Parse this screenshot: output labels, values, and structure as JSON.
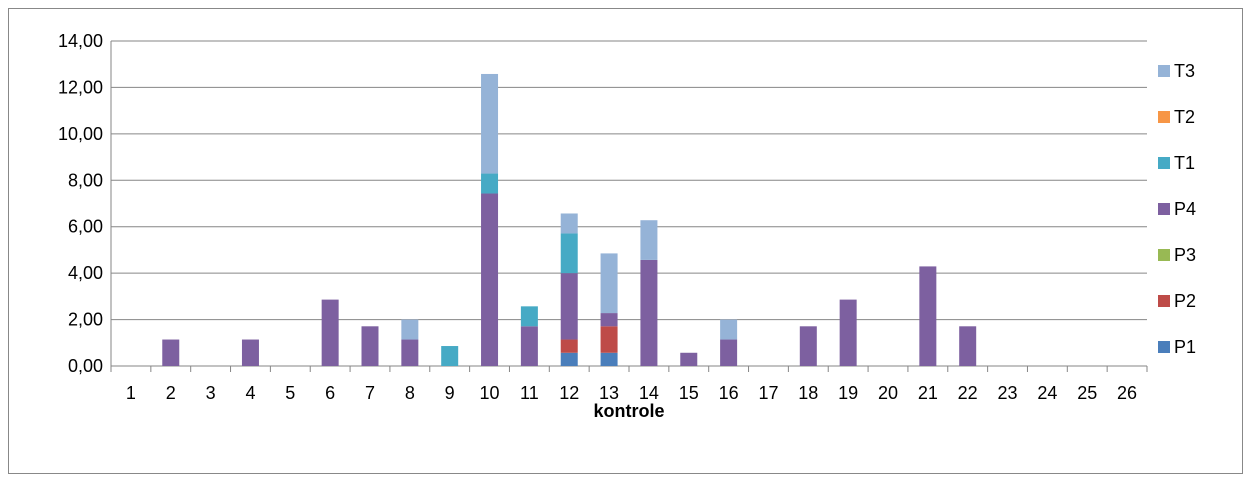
{
  "chart_data": {
    "type": "bar",
    "stacked": true,
    "title": "",
    "xlabel": "kontrole",
    "ylabel": "",
    "ylim": [
      0,
      14
    ],
    "y_ticks": [
      "0,00",
      "2,00",
      "4,00",
      "6,00",
      "8,00",
      "10,00",
      "12,00",
      "14,00"
    ],
    "grid": "horizontal",
    "legend_position": "right",
    "categories": [
      "1",
      "2",
      "3",
      "4",
      "5",
      "6",
      "7",
      "8",
      "9",
      "10",
      "11",
      "12",
      "13",
      "14",
      "15",
      "16",
      "17",
      "18",
      "19",
      "20",
      "21",
      "22",
      "23",
      "24",
      "25",
      "26"
    ],
    "series": [
      {
        "name": "P1",
        "color": "#4a7ebb",
        "values": [
          0,
          0,
          0,
          0,
          0,
          0,
          0,
          0,
          0,
          0,
          0,
          0.57,
          0.57,
          0,
          0,
          0,
          0,
          0,
          0,
          0,
          0,
          0,
          0,
          0,
          0,
          0
        ]
      },
      {
        "name": "P2",
        "color": "#be4b48",
        "values": [
          0,
          0,
          0,
          0,
          0,
          0,
          0,
          0,
          0,
          0,
          0,
          0.57,
          1.14,
          0,
          0,
          0,
          0,
          0,
          0,
          0,
          0,
          0,
          0,
          0,
          0,
          0
        ]
      },
      {
        "name": "P3",
        "color": "#98b954",
        "values": [
          0,
          0,
          0,
          0,
          0,
          0,
          0,
          0,
          0,
          0,
          0,
          0,
          0,
          0,
          0,
          0,
          0,
          0,
          0,
          0,
          0,
          0,
          0,
          0,
          0,
          0
        ]
      },
      {
        "name": "P4",
        "color": "#7d60a0",
        "values": [
          0,
          1.14,
          0,
          1.14,
          0,
          2.86,
          1.71,
          1.14,
          0,
          7.43,
          1.71,
          2.86,
          0.57,
          4.57,
          0.57,
          1.14,
          0,
          1.71,
          2.86,
          0,
          4.29,
          1.71,
          0,
          0,
          0,
          0
        ]
      },
      {
        "name": "T1",
        "color": "#46aac5",
        "values": [
          0,
          0,
          0,
          0,
          0,
          0,
          0,
          0,
          0.86,
          0.86,
          0.86,
          1.71,
          0,
          0,
          0,
          0,
          0,
          0,
          0,
          0,
          0,
          0,
          0,
          0,
          0,
          0
        ]
      },
      {
        "name": "T2",
        "color": "#f79646",
        "values": [
          0,
          0,
          0,
          0,
          0,
          0,
          0,
          0,
          0,
          0,
          0,
          0,
          0,
          0,
          0,
          0,
          0,
          0,
          0,
          0,
          0,
          0,
          0,
          0,
          0,
          0
        ]
      },
      {
        "name": "T3",
        "color": "#95b3d7",
        "values": [
          0,
          0,
          0,
          0,
          0,
          0,
          0,
          0.86,
          0,
          4.29,
          0,
          0.86,
          2.57,
          1.71,
          0,
          0.86,
          0,
          0,
          0,
          0,
          0,
          0,
          0,
          0,
          0,
          0
        ]
      }
    ]
  }
}
